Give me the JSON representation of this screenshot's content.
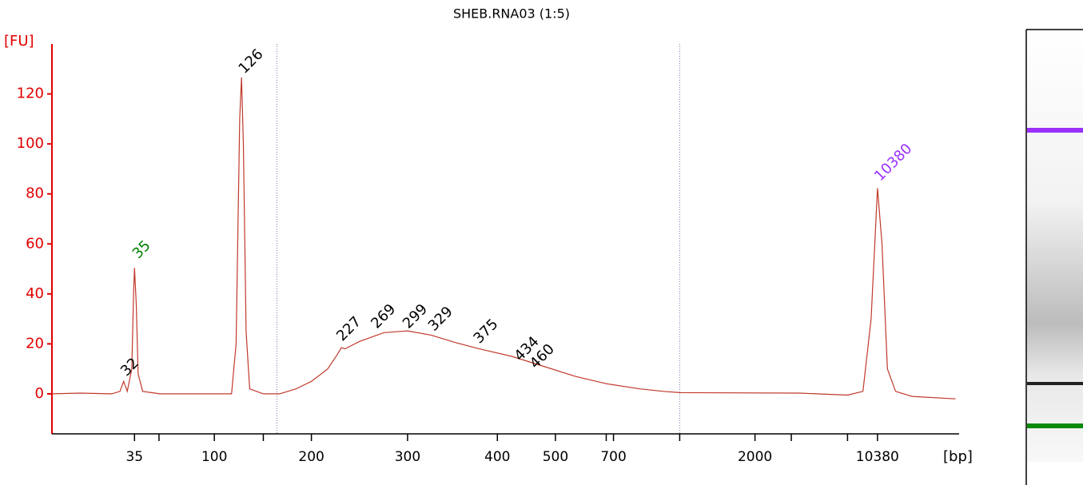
{
  "chart_data": {
    "type": "line",
    "title": "SHEB.RNA03 (1:5)",
    "y_label": "[FU]",
    "x_label": "[bp]",
    "axis_color": "#e00000",
    "line_color": "#c0392b",
    "xlim": [
      0,
      100
    ],
    "ylim": [
      -16,
      140
    ],
    "yticks": [
      0,
      20,
      40,
      60,
      80,
      100,
      120
    ],
    "xticks": [
      {
        "value": 9.1,
        "label": "35"
      },
      {
        "value": 17.9,
        "label": "100"
      },
      {
        "value": 28.6,
        "label": "200"
      },
      {
        "value": 39.2,
        "label": "300"
      },
      {
        "value": 49.1,
        "label": "400"
      },
      {
        "value": 55.5,
        "label": "500"
      },
      {
        "value": 61.9,
        "label": "700"
      },
      {
        "value": 77.5,
        "label": "2000"
      },
      {
        "value": 91.0,
        "label": "10380"
      }
    ],
    "xminorticks": [
      11.8,
      23.3,
      61.1,
      69.2,
      81.5,
      87.7
    ],
    "region_markers": [
      24.8,
      69.2
    ],
    "x": [
      0,
      3.1,
      6.6,
      7.5,
      7.9,
      8.3,
      8.8,
      9.0,
      9.1,
      9.3,
      9.5,
      10.0,
      11.9,
      19.8,
      20.3,
      20.7,
      20.9,
      21.1,
      21.4,
      21.8,
      23.3,
      25.1,
      26.9,
      28.6,
      30.4,
      31.5,
      31.9,
      32.3,
      33.9,
      36.6,
      39.2,
      41.8,
      44.5,
      47.1,
      50.7,
      54.2,
      57.7,
      61.2,
      64.8,
      67.4,
      69.2,
      82.4,
      87.7,
      89.4,
      90.3,
      91.0,
      91.5,
      92.1,
      93.0,
      94.8,
      99.6
    ],
    "values": [
      0,
      0.3,
      0,
      1,
      5,
      1,
      10,
      40,
      50.4,
      35,
      8,
      1,
      0,
      0,
      20,
      110,
      126.6,
      100,
      25,
      2,
      0,
      0,
      2,
      5,
      10,
      16,
      18.5,
      18,
      21,
      24.5,
      25.2,
      23.5,
      20.5,
      18,
      15,
      11,
      7,
      4,
      2,
      1,
      0.5,
      0.3,
      -0.5,
      1,
      30,
      82.3,
      60,
      10,
      1,
      -1,
      -2
    ],
    "annotations": [
      {
        "text": "32",
        "x": 7.9,
        "y": 8,
        "color": "#000000"
      },
      {
        "text": "35",
        "x": 9.2,
        "y": 55,
        "color": "#008000"
      },
      {
        "text": "126",
        "x": 20.9,
        "y": 129,
        "color": "#000000"
      },
      {
        "text": "227",
        "x": 31.7,
        "y": 22,
        "color": "#000000"
      },
      {
        "text": "269",
        "x": 35.5,
        "y": 27,
        "color": "#000000"
      },
      {
        "text": "299",
        "x": 39.0,
        "y": 27,
        "color": "#000000"
      },
      {
        "text": "329",
        "x": 41.8,
        "y": 26,
        "color": "#000000"
      },
      {
        "text": "375",
        "x": 46.8,
        "y": 21,
        "color": "#000000"
      },
      {
        "text": "434",
        "x": 51.3,
        "y": 14,
        "color": "#000000"
      },
      {
        "text": "460",
        "x": 53.0,
        "y": 11,
        "color": "#000000"
      },
      {
        "text": "10380",
        "x": 91.0,
        "y": 86,
        "color": "#9b30ff"
      }
    ]
  }
}
